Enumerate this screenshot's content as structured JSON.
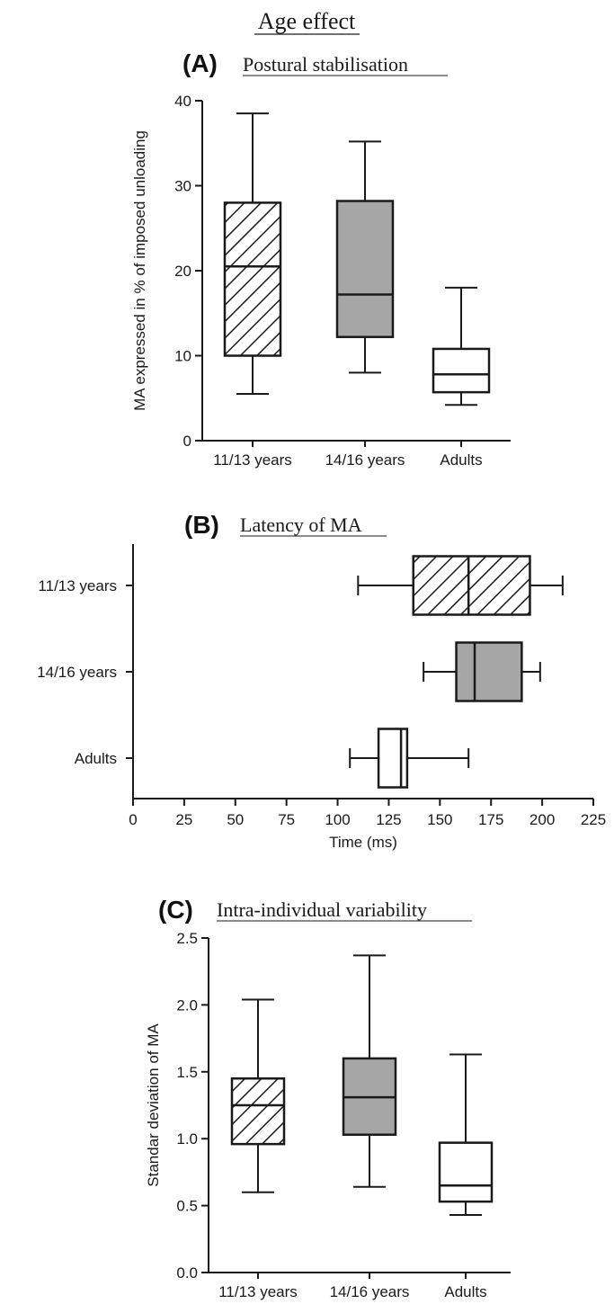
{
  "figure": {
    "title": "Age effect",
    "panel_a": {
      "letter": "(A)",
      "subtitle": "Postural stabilisation"
    },
    "panel_b": {
      "letter": "(B)",
      "subtitle": "Latency of MA"
    },
    "panel_c": {
      "letter": "(C)",
      "subtitle": "Intra-individual variability"
    }
  },
  "colors": {
    "axis": "#1a1a1a",
    "gray_fill": "#a6a6a6",
    "white_fill": "#ffffff"
  },
  "chart_data": [
    {
      "type": "box",
      "orientation": "vertical",
      "title": "Postural stabilisation",
      "ylabel": "MA expressed in % of imposed unloading",
      "ylim": [
        0,
        40
      ],
      "yticks": [
        0,
        10,
        20,
        30,
        40
      ],
      "categories": [
        "11/13 years",
        "14/16 years",
        "Adults"
      ],
      "fills": [
        "hatch",
        "gray",
        "white"
      ],
      "boxes": [
        {
          "min": 5.5,
          "q1": 10,
          "median": 20.5,
          "q3": 28,
          "max": 38.5
        },
        {
          "min": 8,
          "q1": 12.2,
          "median": 17.2,
          "q3": 28.2,
          "max": 35.2
        },
        {
          "min": 4.2,
          "q1": 5.7,
          "median": 7.8,
          "q3": 10.8,
          "max": 18
        }
      ]
    },
    {
      "type": "box",
      "orientation": "horizontal",
      "title": "Latency of MA",
      "xlabel": "Time (ms)",
      "xlim": [
        0,
        225
      ],
      "xticks": [
        "0",
        "25",
        "50",
        "75",
        "100",
        "125",
        "150",
        "175",
        "200",
        "225"
      ],
      "categories": [
        "11/13 years",
        "14/16 years",
        "Adults"
      ],
      "fills": [
        "hatch",
        "gray",
        "white"
      ],
      "boxes": [
        {
          "min": 110,
          "q1": 137,
          "median": 164,
          "q3": 194,
          "max": 210
        },
        {
          "min": 142,
          "q1": 158,
          "median": 167,
          "q3": 190,
          "max": 199
        },
        {
          "min": 106,
          "q1": 120,
          "median": 131,
          "q3": 134,
          "max": 164
        }
      ]
    },
    {
      "type": "box",
      "orientation": "vertical",
      "title": "Intra-individual variability",
      "ylabel": "Standar deviation of MA",
      "ylim": [
        0,
        2.5
      ],
      "yticks": [
        "0.0",
        "0.5",
        "1.0",
        "1.5",
        "2.0",
        "2.5"
      ],
      "categories": [
        "11/13 years",
        "14/16 years",
        "Adults"
      ],
      "fills": [
        "hatch",
        "gray",
        "white"
      ],
      "boxes": [
        {
          "min": 0.6,
          "q1": 0.96,
          "median": 1.25,
          "q3": 1.45,
          "max": 2.04
        },
        {
          "min": 0.64,
          "q1": 1.03,
          "median": 1.31,
          "q3": 1.6,
          "max": 2.37
        },
        {
          "min": 0.43,
          "q1": 0.53,
          "median": 0.65,
          "q3": 0.97,
          "max": 1.63
        }
      ]
    }
  ]
}
